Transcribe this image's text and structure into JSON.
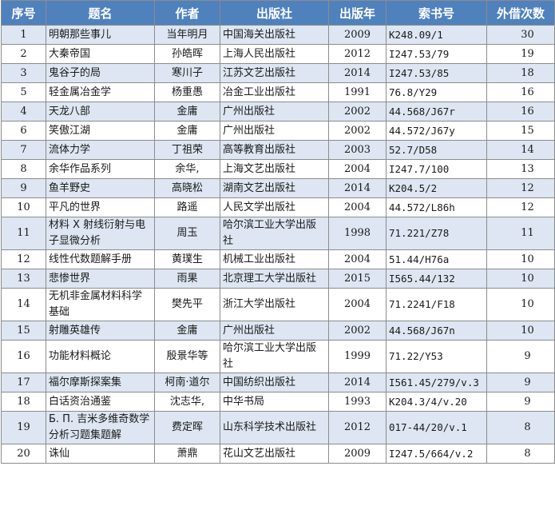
{
  "headers": [
    "序号",
    "题名",
    "作者",
    "出版社",
    "出版年",
    "索书号",
    "外借次数"
  ],
  "rows": [
    {
      "no": "1",
      "title": "明朝那些事儿",
      "author": "当年明月",
      "publisher": "中国海关出版社",
      "year": "2009",
      "call": "K248.09/1",
      "count": "30"
    },
    {
      "no": "2",
      "title": "大秦帝国",
      "author": "孙皓晖",
      "publisher": "上海人民出版社",
      "year": "2012",
      "call": "I247.53/79",
      "count": "19"
    },
    {
      "no": "3",
      "title": "鬼谷子的局",
      "author": "寒川子",
      "publisher": "江苏文艺出版社",
      "year": "2014",
      "call": "I247.53/85",
      "count": "18"
    },
    {
      "no": "5",
      "title": "轻金属冶金学",
      "author": "杨重愚",
      "publisher": "冶金工业出版社",
      "year": "1991",
      "call": "76.8/Y29",
      "count": "16"
    },
    {
      "no": "4",
      "title": "天龙八部",
      "author": "金庸",
      "publisher": "广州出版社",
      "year": "2002",
      "call": "44.568/J67r",
      "count": "16"
    },
    {
      "no": "6",
      "title": "笑傲江湖",
      "author": "金庸",
      "publisher": "广州出版社",
      "year": "2002",
      "call": "44.572/J67y",
      "count": "15"
    },
    {
      "no": "7",
      "title": "流体力学",
      "author": "丁祖荣",
      "publisher": "高等教育出版社",
      "year": "2003",
      "call": "52.7/D58",
      "count": "14"
    },
    {
      "no": "8",
      "title": "余华作品系列",
      "author": "余华,",
      "publisher": "上海文艺出版社",
      "year": "2004",
      "call": "I247.7/100",
      "count": "13"
    },
    {
      "no": "9",
      "title": "鱼羊野史",
      "author": "高晓松",
      "publisher": "湖南文艺出版社",
      "year": "2014",
      "call": "K204.5/2",
      "count": "12"
    },
    {
      "no": "10",
      "title": "平凡的世界",
      "author": "路遥",
      "publisher": "人民文学出版社",
      "year": "2004",
      "call": "44.572/L86h",
      "count": "12"
    },
    {
      "no": "11",
      "title": "材料 X 射线衍射与电子显微分析",
      "author": "周玉",
      "publisher": "哈尔滨工业大学出版社",
      "year": "1998",
      "call": "71.221/Z78",
      "count": "11"
    },
    {
      "no": "12",
      "title": "线性代数题解手册",
      "author": "黄璞生",
      "publisher": "机械工业出版社",
      "year": "2004",
      "call": "51.44/H76a",
      "count": "10"
    },
    {
      "no": "13",
      "title": "悲惨世界",
      "author": "雨果",
      "publisher": "北京理工大学出版社",
      "year": "2015",
      "call": "I565.44/132",
      "count": "10"
    },
    {
      "no": "14",
      "title": "无机非金属材料科学基础",
      "author": "樊先平",
      "publisher": "浙江大学出版社",
      "year": "2004",
      "call": "71.2241/F18",
      "count": "10"
    },
    {
      "no": "15",
      "title": "射雕英雄传",
      "author": "金庸",
      "publisher": "广州出版社",
      "year": "2002",
      "call": "44.568/J67n",
      "count": "10"
    },
    {
      "no": "16",
      "title": "功能材料概论",
      "author": "殷景华等",
      "publisher": "哈尔滨工业大学出版社",
      "year": "1999",
      "call": "71.22/Y53",
      "count": "9"
    },
    {
      "no": "17",
      "title": "福尔摩斯探案集",
      "author": "柯南·道尔",
      "publisher": "中国纺织出版社",
      "year": "2014",
      "call": "I561.45/279/v.3",
      "count": "9"
    },
    {
      "no": "18",
      "title": "白话资治通鉴",
      "author": "沈志华,",
      "publisher": "中华书局",
      "year": "1993",
      "call": "K204.3/4/v.20",
      "count": "9"
    },
    {
      "no": "19",
      "title": "Б. П. 吉米多维奇数学分析习题集题解",
      "author": "费定晖",
      "publisher": "山东科学技术出版社",
      "year": "2012",
      "call": "017-44/20/v.1",
      "count": "8"
    },
    {
      "no": "20",
      "title": "诛仙",
      "author": "萧鼎",
      "publisher": "花山文艺出版社",
      "year": "2009",
      "call": "I247.5/664/v.2",
      "count": "8"
    }
  ],
  "colors": {
    "header_bg": "#4f81bd",
    "header_text": "#ffffff",
    "row_alt": "#dde6f2",
    "border": "#8c8c8c"
  }
}
